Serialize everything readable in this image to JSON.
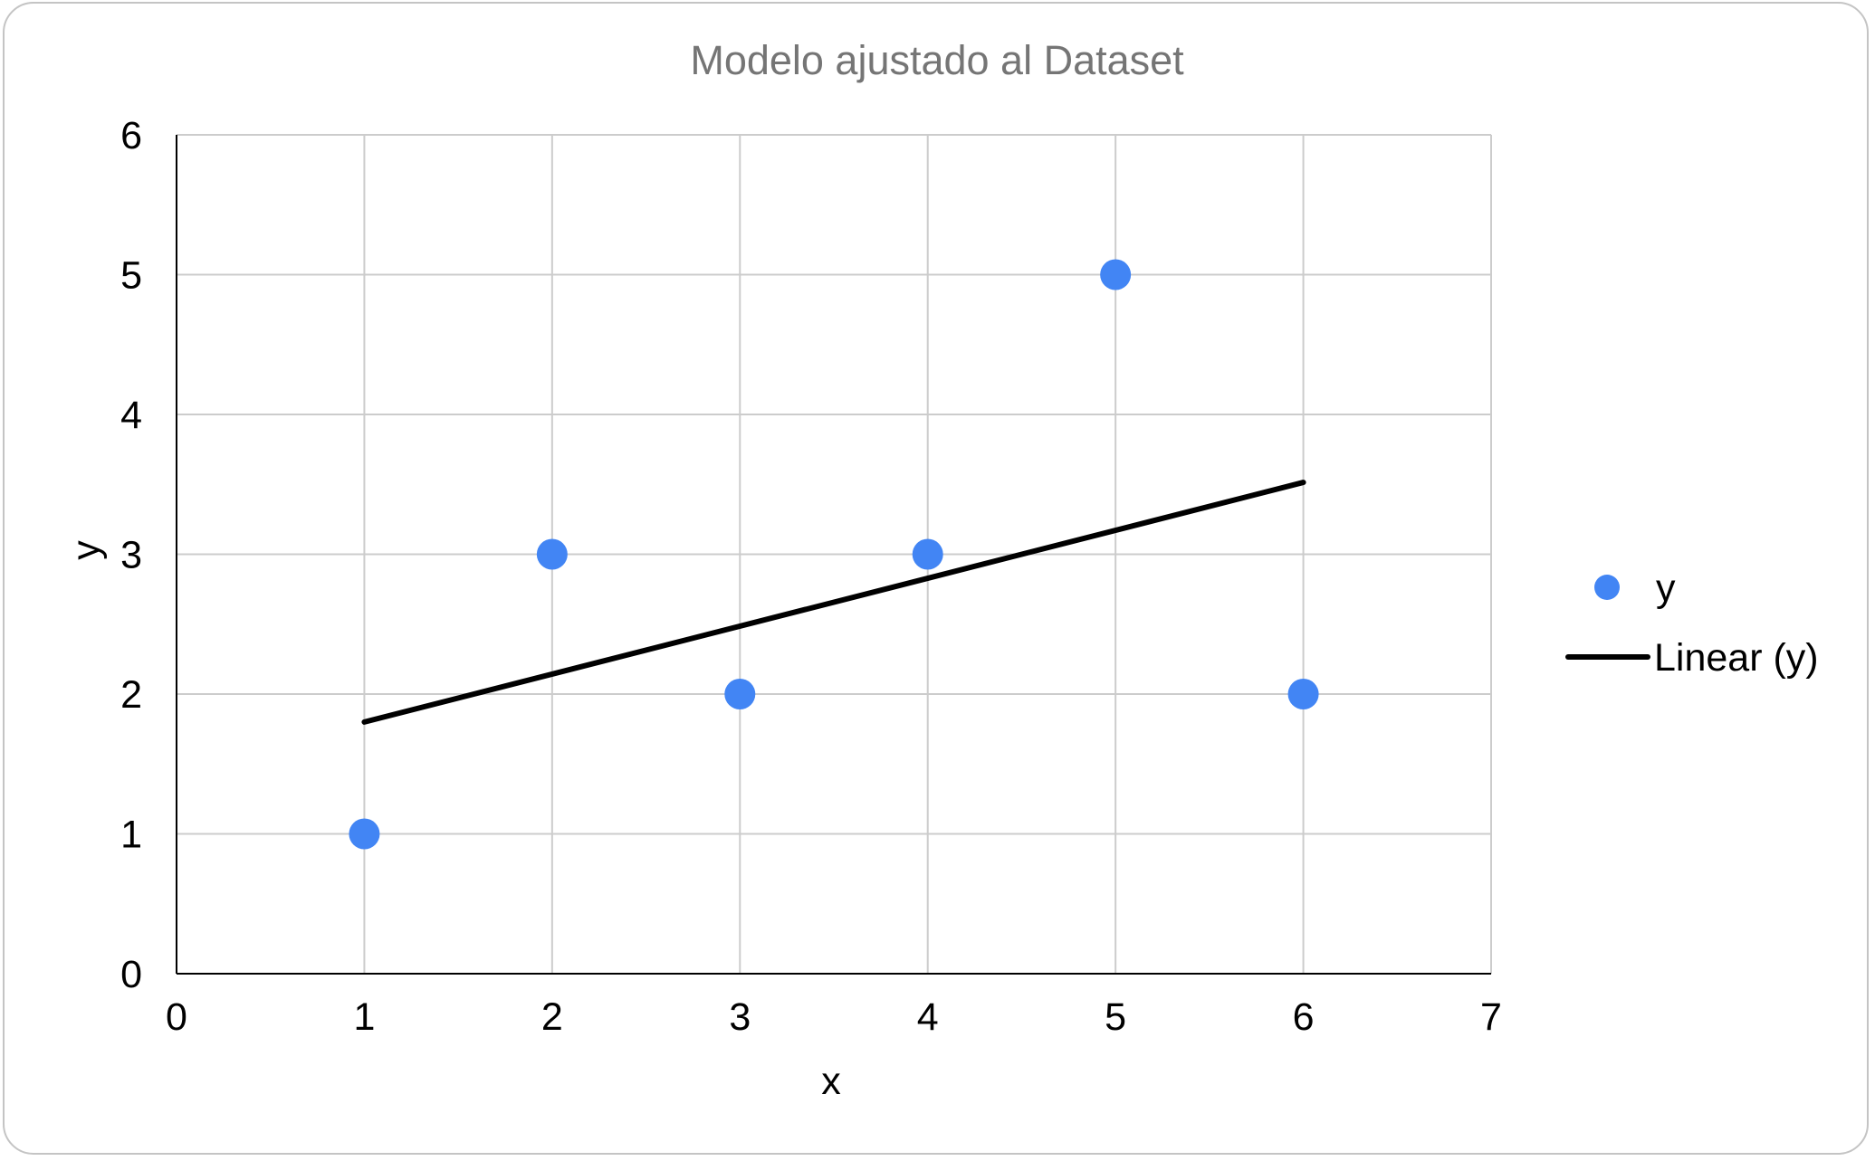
{
  "chart_data": {
    "type": "scatter",
    "title": "Modelo ajustado al Dataset",
    "xlabel": "x",
    "ylabel": "y",
    "xlim": [
      0,
      7
    ],
    "ylim": [
      0,
      6
    ],
    "xticks": [
      "0",
      "1",
      "2",
      "3",
      "4",
      "5",
      "6",
      "7"
    ],
    "yticks": [
      "0",
      "1",
      "2",
      "3",
      "4",
      "5",
      "6"
    ],
    "grid": true,
    "legend_position": "right",
    "series": [
      {
        "name": "y",
        "type": "scatter",
        "color": "#4285f4",
        "x": [
          1,
          2,
          3,
          4,
          5,
          6
        ],
        "y": [
          1,
          3,
          2,
          3,
          5,
          2
        ]
      },
      {
        "name": "Linear (y)",
        "type": "line",
        "color": "#000000",
        "x": [
          1,
          6
        ],
        "y": [
          1.8,
          3.514
        ]
      }
    ]
  }
}
